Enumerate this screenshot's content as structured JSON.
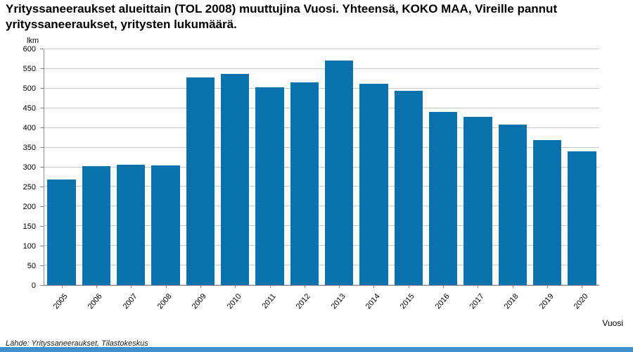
{
  "source": "Lähde: Yrityssaneeraukset, Tilastokeskus",
  "chart_data": {
    "type": "bar",
    "title": "Yrityssaneeraukset alueittain (TOL 2008) muuttujina Vuosi. Yhteensä, KOKO MAA, Vireille pannut yrityssaneeraukset, yritysten lukumäärä.",
    "categories": [
      "2005",
      "2006",
      "2007",
      "2008",
      "2009",
      "2010",
      "2011",
      "2012",
      "2013",
      "2014",
      "2015",
      "2016",
      "2017",
      "2018",
      "2019",
      "2020"
    ],
    "values": [
      269,
      302,
      306,
      304,
      528,
      538,
      503,
      515,
      571,
      512,
      495,
      440,
      428,
      408,
      369,
      340
    ],
    "xlabel": "Vuosi",
    "ylabel": "lkm",
    "ylim": [
      0,
      600
    ],
    "ytick_step": 50,
    "grid": true,
    "legend": "none",
    "bar_color": "#0a73ad",
    "gridline_color": "#c9c9c9",
    "axis_color": "#8c8c8c"
  }
}
